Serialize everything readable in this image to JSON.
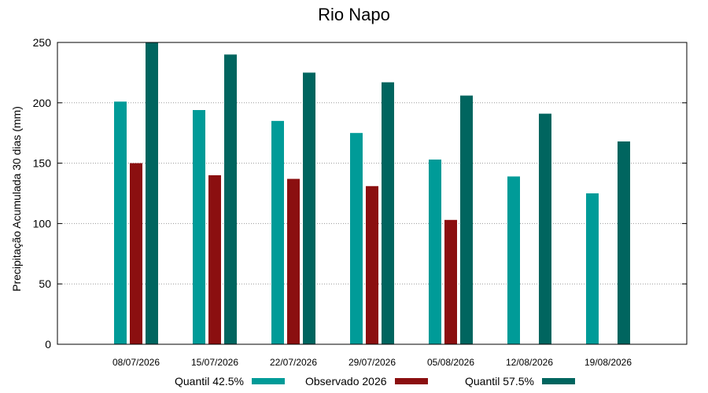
{
  "chart_data": {
    "type": "bar",
    "title": "Rio Napo",
    "xlabel": "",
    "ylabel": "Precipitação Acumulada 30 dias (mm)",
    "ylim": [
      0,
      250
    ],
    "yticks": [
      0,
      50,
      100,
      150,
      200,
      250
    ],
    "grid": true,
    "legend_position": "bottom",
    "categories": [
      "08/07/2026",
      "15/07/2026",
      "22/07/2026",
      "29/07/2026",
      "05/08/2026",
      "12/08/2026",
      "19/08/2026"
    ],
    "series": [
      {
        "name": "Quantil 42.5%",
        "color": "#009b98",
        "values": [
          201,
          194,
          185,
          175,
          153,
          139,
          125
        ]
      },
      {
        "name": "Observado 2026",
        "color": "#8b0f10",
        "values": [
          150,
          140,
          137,
          131,
          103,
          null,
          null
        ]
      },
      {
        "name": "Quantil 57.5%",
        "color": "#00655f",
        "values": [
          250,
          240,
          225,
          217,
          206,
          191,
          168
        ]
      }
    ]
  }
}
